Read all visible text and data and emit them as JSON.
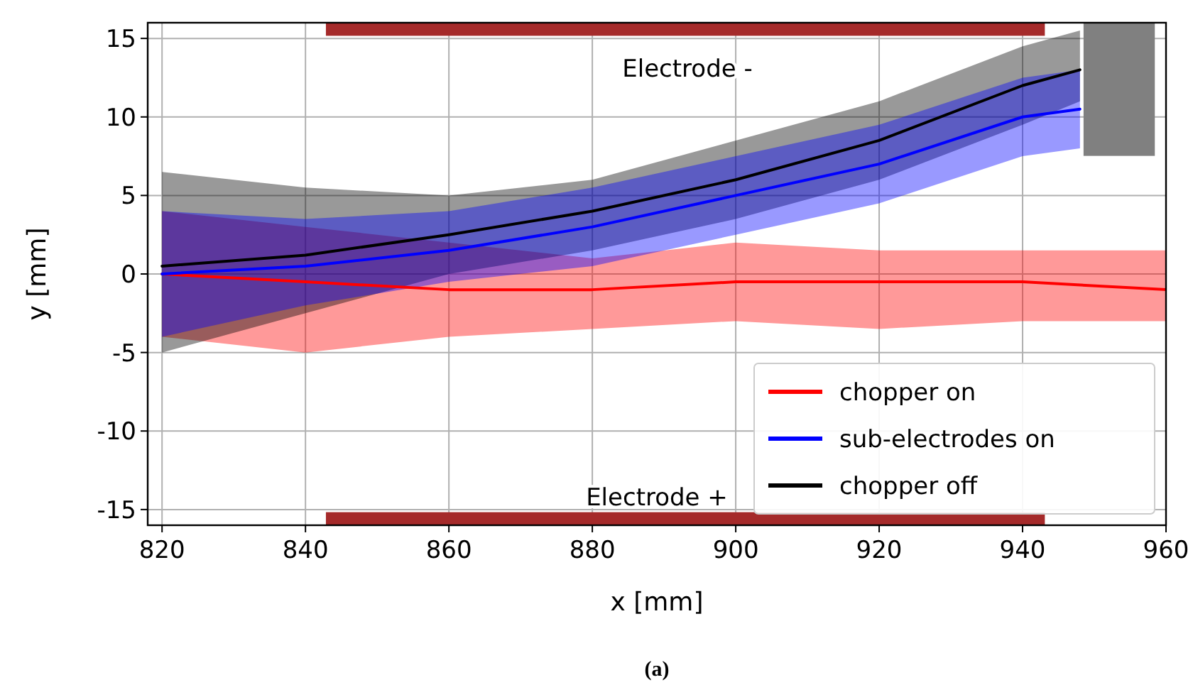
{
  "chart_data": {
    "type": "line",
    "xlabel": "x [mm]",
    "ylabel": "y [mm]",
    "xlim": [
      818,
      960
    ],
    "xticks": [
      820,
      840,
      860,
      880,
      900,
      920,
      940,
      960
    ],
    "ylim": [
      -16,
      16
    ],
    "yticks": [
      -15,
      -10,
      -5,
      0,
      5,
      10,
      15
    ],
    "grid": true,
    "legend": "bottom right",
    "annotations": [
      "Electrode -",
      "Electrode +",
      "(a)"
    ],
    "series": [
      {
        "name": "chopper on",
        "color": "#ff0000",
        "x": [
          820,
          840,
          860,
          880,
          900,
          920,
          940,
          960
        ],
        "values": [
          0,
          -0.5,
          -1,
          -1,
          -0.5,
          -0.5,
          -0.5,
          -1
        ],
        "lower": [
          -4,
          -5,
          -4,
          -3.5,
          -3,
          -3.5,
          -3,
          -3
        ],
        "upper": [
          4,
          3,
          2,
          1,
          2,
          1.5,
          1.5,
          1.5
        ]
      },
      {
        "name": "sub-electrodes on",
        "color": "#0000ff",
        "x": [
          820,
          840,
          860,
          880,
          900,
          920,
          940,
          948
        ],
        "values": [
          0,
          0.5,
          1.5,
          3,
          5,
          7,
          10,
          10.5
        ],
        "lower": [
          -4,
          -2,
          -0.5,
          0.5,
          2.5,
          4.5,
          7.5,
          8
        ],
        "upper": [
          4,
          3.5,
          4,
          5.5,
          7.5,
          9.5,
          12.5,
          13
        ]
      },
      {
        "name": "chopper off",
        "color": "#000000",
        "x": [
          820,
          840,
          860,
          880,
          900,
          920,
          940,
          948
        ],
        "values": [
          0.5,
          1.2,
          2.5,
          4,
          6,
          8.5,
          12,
          13
        ],
        "lower": [
          -5,
          -2.5,
          0,
          1.5,
          3.5,
          6,
          9.5,
          11
        ],
        "upper": [
          6.5,
          5.5,
          5,
          6,
          8.5,
          11,
          14.5,
          15.5
        ]
      }
    ]
  }
}
